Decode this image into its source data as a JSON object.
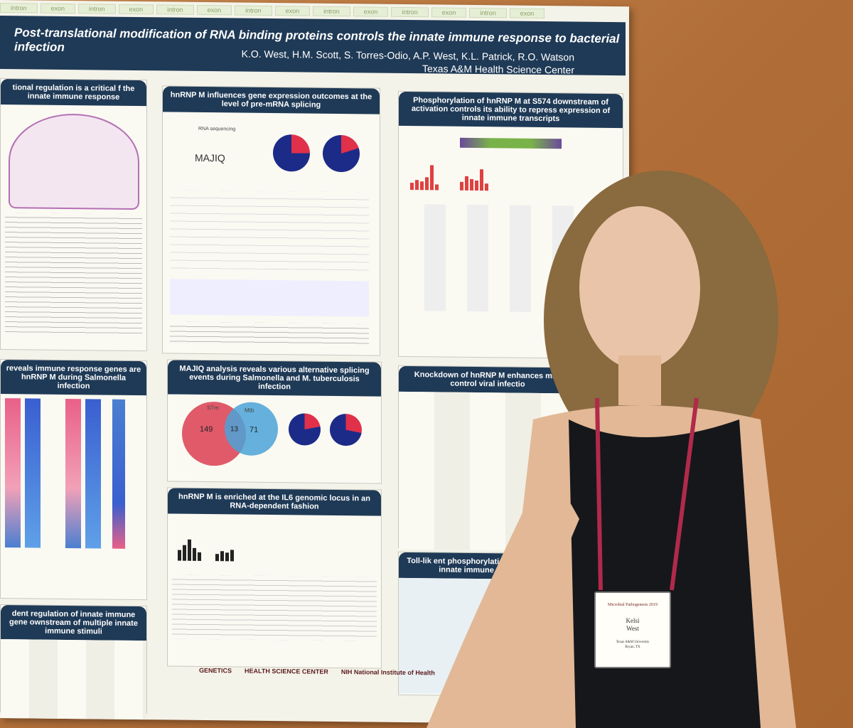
{
  "poster": {
    "strip_words": [
      "intron",
      "exon",
      "intron",
      "exon",
      "intron",
      "exon",
      "intron",
      "exon",
      "intron",
      "exon",
      "intron",
      "exon",
      "intron",
      "exon"
    ],
    "title": "Post-translational modification of RNA binding proteins controls the innate immune response to bacterial infection",
    "authors": "K.O. West, H.M. Scott, S. Torres-Odio, A.P. West, K.L. Patrick, R.O. Watson",
    "affiliation": "Texas A&M Health Science Center",
    "panels": {
      "p1": "tional regulation is a critical f the innate immune response",
      "p2": "hnRNP M influences gene expression outcomes at the level of pre-mRNA splicing",
      "p3": "Phosphorylation of hnRNP M at S574 downstream of activation controls its ability to repress expression of innate immune transcripts",
      "p4": "reveals immune response genes are hnRNP M during Salmonella infection",
      "p5": "MAJIQ analysis reveals various alternative splicing events during Salmonella and M. tuberculosis infection",
      "p6": "Knockdown of hnRNP M enhances mac control viral infectio",
      "p7": "hnRNP M is enriched at the IL6 genomic locus in an RNA-dependent fashion",
      "p8": "dent regulation of innate immune gene ownstream of multiple innate immune stimuli",
      "p9": "Toll-lik ent phosphorylation of hnRNP ecific innate immune transcripts"
    },
    "majiq": {
      "label": "RNA sequencing",
      "logo": "MAJIQ"
    },
    "venn": {
      "left_label": "STm",
      "right_label": "Mtb",
      "left_value": "149",
      "overlap": "13",
      "right_value": "71"
    },
    "logos": [
      "GENETICS",
      "HEALTH SCIENCE CENTER",
      "NIH National Institute of Health"
    ]
  },
  "badge": {
    "conference": "Microbial Pathogenesis 2019",
    "name_first": "Kelsi",
    "name_last": "West",
    "org": "Texas A&M University",
    "city": "Bryan, TX"
  },
  "colors": {
    "navy": "#1f3a56",
    "pie_blue": "#1c2b88",
    "pie_red": "#e0304a",
    "venn_red": "#e05a6a",
    "venn_blue": "#4aa3d8"
  }
}
